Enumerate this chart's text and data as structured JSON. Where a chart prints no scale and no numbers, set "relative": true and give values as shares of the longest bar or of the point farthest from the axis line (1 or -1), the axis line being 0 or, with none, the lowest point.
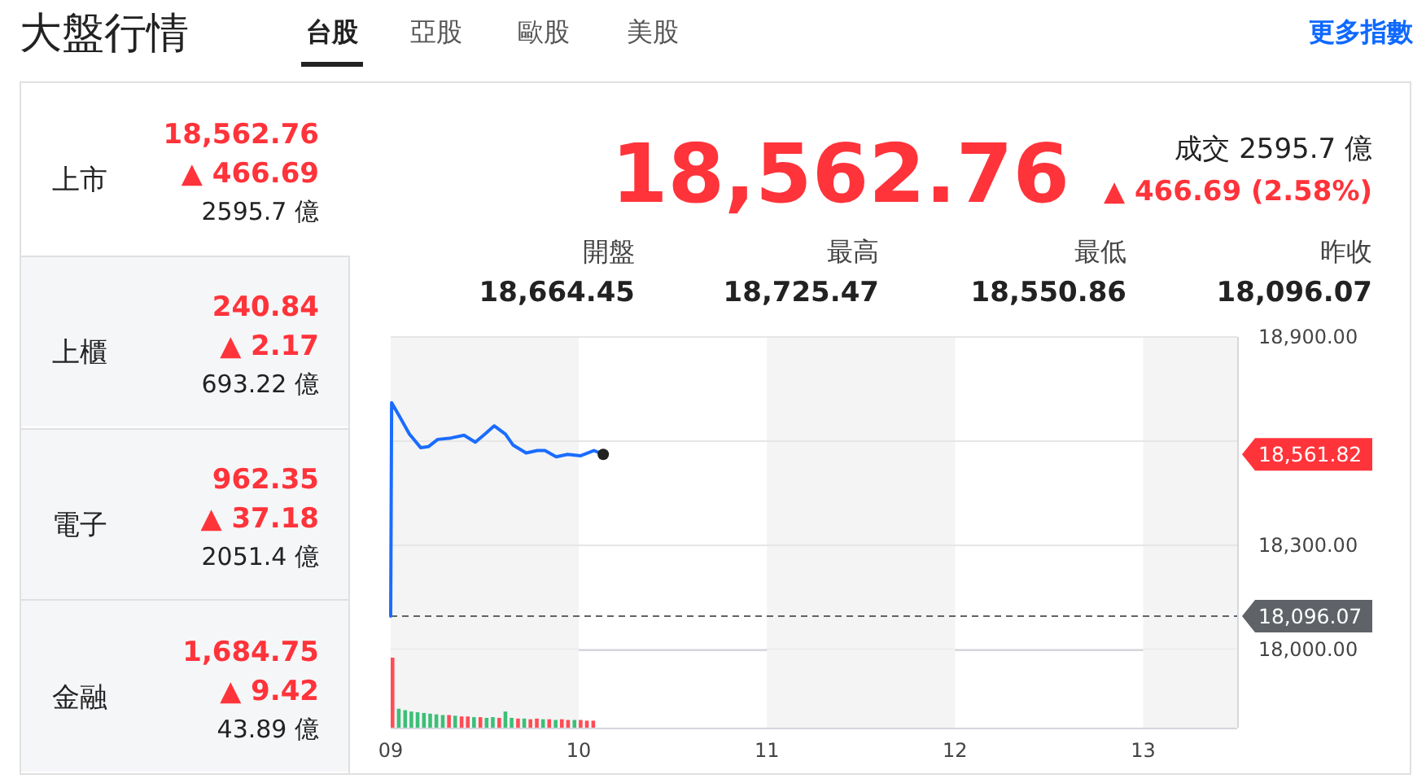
{
  "chart_data": [
    {
      "type": "other",
      "title": "大盤行情",
      "annotations": [
        "台股",
        "亞股",
        "歐股",
        "美股",
        "更多指數",
        "上市",
        "18,562.76",
        "▲ 466.69",
        "2595.7 億",
        "上櫃",
        "240.84",
        "▲ 2.17",
        "693.22 億",
        "電子",
        "962.35",
        "▲ 37.18",
        "2051.4 億",
        "金融",
        "1,684.75",
        "▲ 9.42",
        "43.89 億",
        "18,562.76",
        "成交 2595.7 億",
        "▲ 466.69 (2.58%)",
        "開盤",
        "18,664.45",
        "最高",
        "18,725.47",
        "最低",
        "18,550.86",
        "昨收",
        "18,096.07"
      ]
    },
    {
      "type": "line",
      "xlim": [
        9,
        13.5
      ],
      "ylim": [
        18000,
        18900
      ],
      "yticks": [
        {
          "value": 18000,
          "label": "18,000.00"
        },
        {
          "value": 18300,
          "label": "18,300.00"
        },
        {
          "value": 18600,
          "label": null
        },
        {
          "value": 18900,
          "label": "18,900.00"
        }
      ],
      "grid": "y",
      "tick_labels": "y",
      "series": [
        {
          "color": "#1a6cff",
          "x": [
            9,
            9.005,
            9.043,
            9.1,
            9.16,
            9.2,
            9.25,
            9.32,
            9.39,
            9.45,
            9.5,
            9.55,
            9.61,
            9.65,
            9.72,
            9.78,
            9.82,
            9.88,
            9.94,
            10.01,
            10.08,
            10.13
          ],
          "values": [
            18096,
            18711,
            18675,
            18620,
            18581,
            18584,
            18605,
            18609,
            18617,
            18597,
            18620,
            18644,
            18620,
            18589,
            18566,
            18573,
            18573,
            18555,
            18562,
            18558,
            18573,
            18562
          ]
        },
        {
          "type": "scatter",
          "color": "#222222",
          "x": [
            10.13
          ],
          "values": [
            18562
          ]
        }
      ],
      "bands": [
        {
          "axis": "x",
          "from": 9,
          "to": 10,
          "color": "#f4f4f4"
        },
        {
          "axis": "x",
          "from": 11,
          "to": 12,
          "color": "#f4f4f4"
        },
        {
          "axis": "x",
          "from": 13,
          "to": 13.5,
          "color": "#f4f4f4"
        }
      ],
      "ref_lines": [
        {
          "axis": "y",
          "value": 18096.07,
          "label": "18,096.07",
          "color": "#5f6368",
          "line_style": "dashed"
        }
      ],
      "annotations": [
        {
          "text": "18,561.82",
          "x": 13.5,
          "y": 18561.82
        }
      ]
    },
    {
      "type": "bar",
      "relative": true,
      "xlim": [
        9,
        13.5
      ],
      "tick_labels": "x",
      "xticks": [
        {
          "value": 9,
          "label": "09"
        },
        10,
        11,
        12,
        13
      ],
      "x": [
        9,
        9.033,
        9.067,
        9.1,
        9.133,
        9.167,
        9.2,
        9.233,
        9.267,
        9.3,
        9.333,
        9.367,
        9.4,
        9.433,
        9.467,
        9.5,
        9.533,
        9.567,
        9.6,
        9.633,
        9.667,
        9.7,
        9.733,
        9.767,
        9.8,
        9.833,
        9.867,
        9.9,
        9.933,
        9.967,
        10,
        10.033,
        10.067
      ],
      "values": [
        1,
        0.27,
        0.25,
        0.23,
        0.22,
        0.21,
        0.2,
        0.19,
        0.18,
        0.18,
        0.17,
        0.16,
        0.16,
        0.15,
        0.15,
        0.14,
        0.15,
        0.14,
        0.23,
        0.14,
        0.13,
        0.13,
        0.12,
        0.13,
        0.12,
        0.12,
        0.11,
        0.12,
        0.11,
        0.11,
        0.11,
        0.1,
        0.1
      ],
      "colors": [
        "#ff4d55",
        "#3cbf78",
        "#3cbf78",
        "#3cbf78",
        "#3cbf78",
        "#3cbf78",
        "#3cbf78",
        "#3cbf78",
        "#3cbf78",
        "#ff4d55",
        "#3cbf78",
        "#ff4d55",
        "#ff4d55",
        "#3cbf78",
        "#ff4d55",
        "#3cbf78",
        "#3cbf78",
        "#ff4d55",
        "#3cbf78",
        "#3cbf78",
        "#ff4d55",
        "#3cbf78",
        "#ff4d55",
        "#ff4d55",
        "#3cbf78",
        "#ff4d55",
        "#3cbf78",
        "#ff4d55",
        "#ff4d55",
        "#3cbf78",
        "#ff4d55",
        "#ff4d55",
        "#ff4d55"
      ],
      "bands": [
        {
          "axis": "x",
          "from": 9,
          "to": 10,
          "color": "#f4f4f4"
        },
        {
          "axis": "x",
          "from": 11,
          "to": 12,
          "color": "#f4f4f4"
        },
        {
          "axis": "x",
          "from": 13,
          "to": 13.5,
          "color": "#f4f4f4"
        }
      ]
    }
  ]
}
